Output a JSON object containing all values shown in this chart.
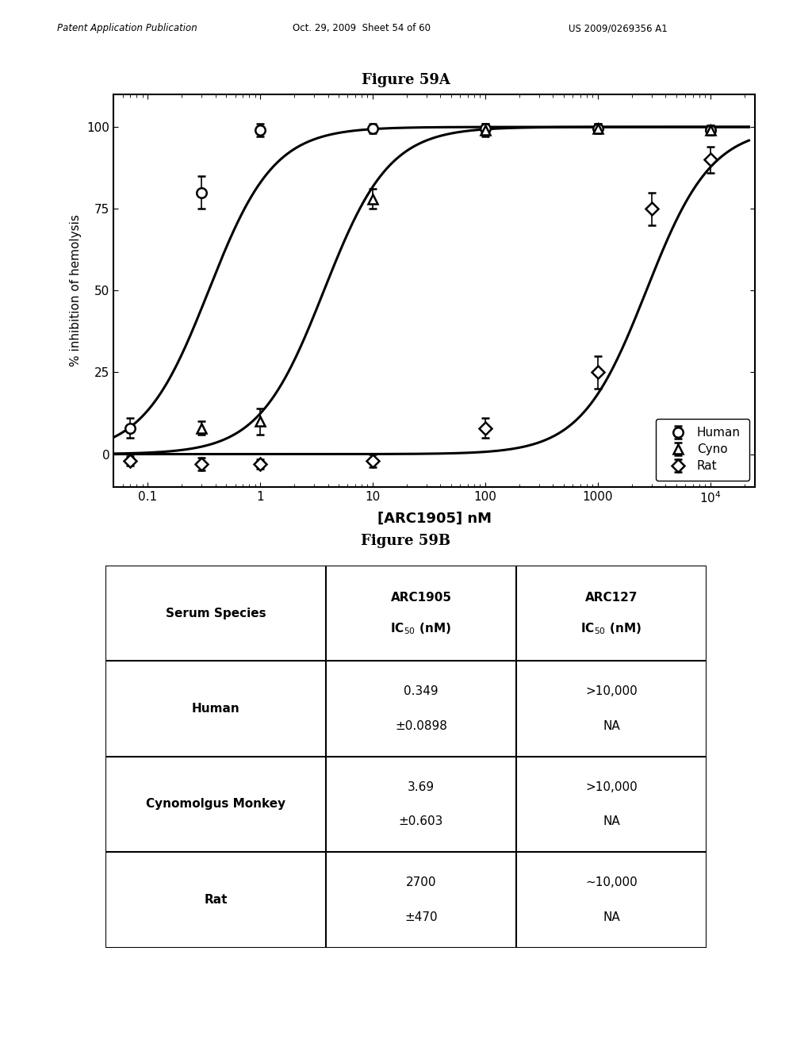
{
  "header_left": "Patent Application Publication",
  "header_center": "Oct. 29, 2009  Sheet 54 of 60",
  "header_right": "US 2009/0269356 A1",
  "fig59a_title": "Figure 59A",
  "fig59b_title": "Figure 59B",
  "xlabel": "[ARC1905] nM",
  "ylabel": "% inhibition of hemolysis",
  "human": {
    "x": [
      0.07,
      0.3,
      1.0,
      10.0,
      100.0,
      1000.0,
      10000.0
    ],
    "y": [
      8.0,
      80.0,
      99.0,
      99.5,
      99.5,
      99.5,
      99.0
    ],
    "yerr": [
      3.0,
      5.0,
      2.0,
      1.5,
      1.5,
      1.5,
      1.5
    ],
    "label": "Human",
    "ic50": 0.349
  },
  "cyno": {
    "x": [
      0.3,
      1.0,
      10.0,
      100.0,
      1000.0,
      10000.0
    ],
    "y": [
      8.0,
      10.0,
      78.0,
      99.0,
      99.5,
      99.0
    ],
    "yerr": [
      2.0,
      4.0,
      3.0,
      2.0,
      1.5,
      1.5
    ],
    "label": "Cyno",
    "ic50": 3.69
  },
  "rat": {
    "x": [
      0.07,
      0.3,
      1.0,
      10.0,
      100.0,
      1000.0,
      3000.0,
      10000.0
    ],
    "y": [
      -2.0,
      -3.0,
      -3.0,
      -2.0,
      8.0,
      25.0,
      75.0,
      90.0
    ],
    "yerr": [
      1.5,
      2.0,
      1.5,
      2.0,
      3.0,
      5.0,
      5.0,
      4.0
    ],
    "label": "Rat",
    "ic50": 2700
  },
  "yticks": [
    0,
    25,
    50,
    75,
    100
  ],
  "xtick_labels": [
    "0.1",
    "1",
    "10",
    "100",
    "1000",
    "10$^4$"
  ],
  "xtick_vals": [
    0.1,
    1,
    10,
    100,
    1000,
    10000
  ],
  "xmin": 0.05,
  "xmax": 25000,
  "ymin": -10,
  "ymax": 110,
  "background_color": "#ffffff"
}
